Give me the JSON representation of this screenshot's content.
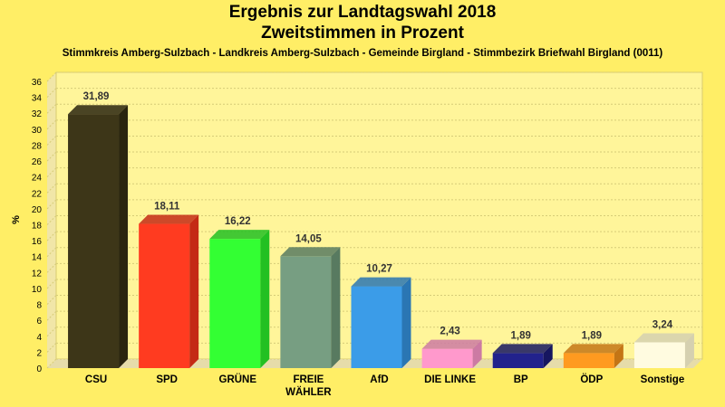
{
  "title_line1": "Ergebnis zur Landtagswahl 2018",
  "title_line2": "Zweitstimmen in Prozent",
  "subtitle": "Stimmkreis Amberg-Sulzbach - Landkreis Amberg-Sulzbach - Gemeinde Birgland - Stimmbezirk Briefwahl Birgland (0011)",
  "chart_data": {
    "type": "bar",
    "ylabel": "%",
    "xlabel": "",
    "ylim": [
      0,
      36
    ],
    "ytick_step": 2,
    "yticks": [
      "0",
      "2",
      "4",
      "6",
      "8",
      "10",
      "12",
      "14",
      "16",
      "18",
      "20",
      "22",
      "24",
      "26",
      "28",
      "30",
      "32",
      "34",
      "36"
    ],
    "grid": true,
    "categories": [
      [
        "CSU"
      ],
      [
        "SPD"
      ],
      [
        "GRÜNE"
      ],
      [
        "FREIE",
        "WÄHLER"
      ],
      [
        "AfD"
      ],
      [
        "DIE LINKE"
      ],
      [
        "BP"
      ],
      [
        "ÖDP"
      ],
      [
        "Sonstige"
      ]
    ],
    "values": [
      31.89,
      18.11,
      16.22,
      14.05,
      10.27,
      2.43,
      1.89,
      1.89,
      3.24
    ],
    "value_labels": [
      "31,89",
      "18,11",
      "16,22",
      "14,05",
      "10,27",
      "2,43",
      "1,89",
      "1,89",
      "3,24"
    ],
    "colors": [
      "#3d3618",
      "#ff3b20",
      "#33ff33",
      "#779e82",
      "#3b9ce8",
      "#ff99cc",
      "#22228c",
      "#ff9a20",
      "#fffbe0"
    ],
    "side_colors": [
      "#2a250f",
      "#c42a15",
      "#22c022",
      "#587a60",
      "#2a76b3",
      "#cc7aa3",
      "#161660",
      "#c47515",
      "#d5d0b0"
    ]
  }
}
